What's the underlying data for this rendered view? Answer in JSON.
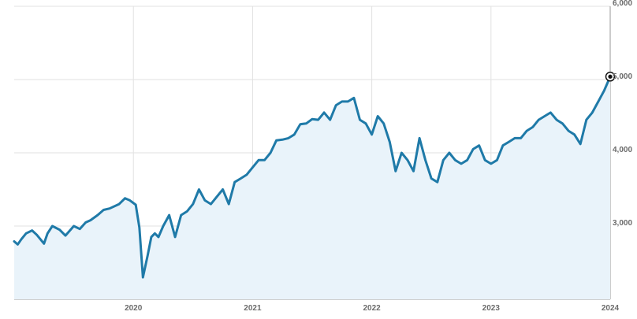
{
  "chart_data": {
    "type": "area",
    "title": "",
    "xlabel": "",
    "ylabel": "",
    "x_tick_labels": [
      "2020",
      "2021",
      "2022",
      "2023",
      "2024"
    ],
    "y_tick_labels": [
      "3,000",
      "4,000",
      "5,000",
      "6,000"
    ],
    "y_ticks": [
      3000,
      4000,
      5000,
      6000
    ],
    "ylim": [
      2000,
      6000
    ],
    "xlim": [
      2019.0,
      2024.0
    ],
    "grid": true,
    "legend": "none",
    "y_axis_position": "right",
    "colors": {
      "line": "#1f7aa8",
      "fill": "#e9f3fa",
      "grid": "#e1e1e1",
      "tick_text": "#6b6b6b"
    },
    "series": [
      {
        "x": [
          2019.0,
          2019.03,
          2019.06,
          2019.1,
          2019.15,
          2019.19,
          2019.25,
          2019.28,
          2019.32,
          2019.38,
          2019.43,
          2019.5,
          2019.55,
          2019.6,
          2019.64,
          2019.7,
          2019.75,
          2019.8,
          2019.88,
          2019.93,
          2019.97,
          2020.02,
          2020.05,
          2020.08,
          2020.12,
          2020.15,
          2020.18,
          2020.21,
          2020.25,
          2020.3,
          2020.35,
          2020.4,
          2020.45,
          2020.5,
          2020.55,
          2020.6,
          2020.65,
          2020.7,
          2020.75,
          2020.8,
          2020.85,
          2020.9,
          2020.95,
          2021.0,
          2021.05,
          2021.1,
          2021.15,
          2021.2,
          2021.25,
          2021.3,
          2021.35,
          2021.4,
          2021.45,
          2021.5,
          2021.55,
          2021.6,
          2021.65,
          2021.7,
          2021.75,
          2021.8,
          2021.85,
          2021.9,
          2021.95,
          2022.0,
          2022.05,
          2022.1,
          2022.15,
          2022.2,
          2022.25,
          2022.3,
          2022.35,
          2022.4,
          2022.45,
          2022.5,
          2022.55,
          2022.6,
          2022.65,
          2022.7,
          2022.75,
          2022.8,
          2022.85,
          2022.9,
          2022.95,
          2023.0,
          2023.05,
          2023.1,
          2023.15,
          2023.2,
          2023.25,
          2023.3,
          2023.35,
          2023.4,
          2023.45,
          2023.5,
          2023.55,
          2023.6,
          2023.65,
          2023.7,
          2023.75,
          2023.8,
          2023.85,
          2023.9,
          2023.95,
          2024.0
        ],
        "y": [
          2790,
          2750,
          2820,
          2900,
          2940,
          2880,
          2760,
          2900,
          3000,
          2950,
          2870,
          3000,
          2960,
          3050,
          3080,
          3150,
          3220,
          3240,
          3300,
          3380,
          3350,
          3290,
          2980,
          2300,
          2600,
          2850,
          2900,
          2850,
          3000,
          3150,
          2850,
          3150,
          3200,
          3300,
          3500,
          3350,
          3300,
          3400,
          3500,
          3300,
          3600,
          3650,
          3700,
          3800,
          3900,
          3900,
          4000,
          4170,
          4180,
          4200,
          4250,
          4390,
          4400,
          4460,
          4450,
          4550,
          4450,
          4650,
          4700,
          4700,
          4750,
          4450,
          4400,
          4250,
          4500,
          4400,
          4150,
          3750,
          4000,
          3900,
          3750,
          4200,
          3900,
          3650,
          3600,
          3900,
          4000,
          3900,
          3850,
          3900,
          4050,
          4100,
          3900,
          3850,
          3900,
          4100,
          4150,
          4200,
          4200,
          4300,
          4350,
          4450,
          4500,
          4550,
          4450,
          4400,
          4300,
          4250,
          4120,
          4450,
          4550,
          4700,
          4850,
          5040
        ]
      }
    ],
    "last_point": {
      "x": 2024.0,
      "y": 5040
    }
  }
}
